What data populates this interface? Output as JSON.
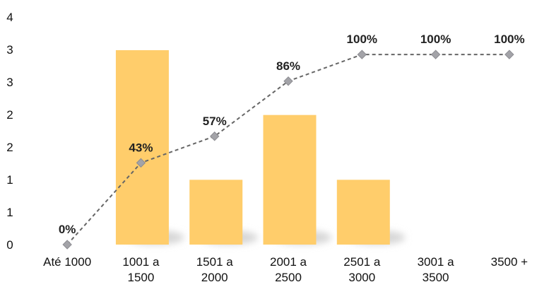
{
  "chart_data": {
    "type": "bar",
    "categories": [
      [
        "Até 1000"
      ],
      [
        "1001 a",
        "1500"
      ],
      [
        "1501 a",
        "2000"
      ],
      [
        "2001 a",
        "2500"
      ],
      [
        "2501 a",
        "3000"
      ],
      [
        "3001 a",
        "3500"
      ],
      [
        "3500 +"
      ]
    ],
    "y_tick_labels": [
      "0",
      "1",
      "1",
      "2",
      "2",
      "3",
      "3",
      "4"
    ],
    "ylim": [
      0,
      3.5
    ],
    "grid": false,
    "legend": "none",
    "series": [
      {
        "type": "bar",
        "values": [
          0,
          3,
          1,
          2,
          1,
          0,
          0
        ],
        "color": "#FFCD6B",
        "shadow_color": "#d6d6d6"
      },
      {
        "type": "line",
        "axis": "secondary",
        "values": [
          0,
          43,
          57,
          86,
          100,
          100,
          100
        ],
        "ylim": [
          0,
          122
        ],
        "labels": [
          "0%",
          "43%",
          "57%",
          "86%",
          "100%",
          "100%",
          "100%"
        ],
        "color": "#666666",
        "marker_color": "#A3A3A8",
        "line_style": "dashed",
        "marker": "diamond"
      }
    ]
  }
}
